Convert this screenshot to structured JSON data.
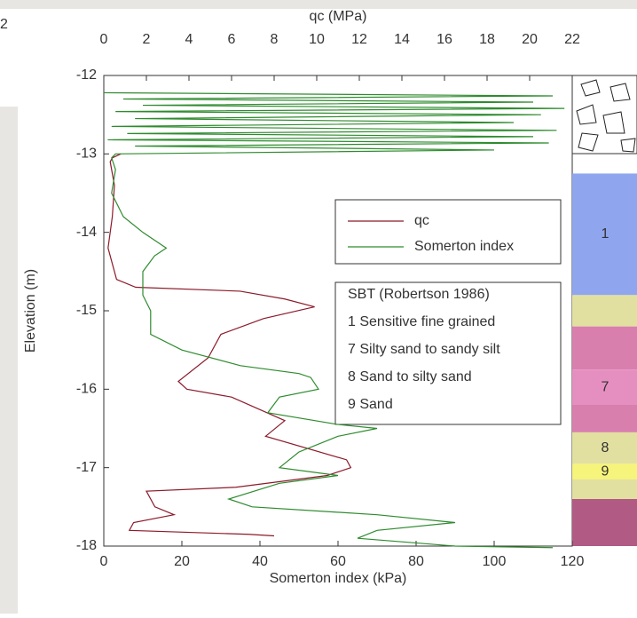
{
  "edge_text": "2",
  "chart_data": {
    "type": "profile",
    "ylabel": "Elevation (m)",
    "ylim": [
      -12,
      -18
    ],
    "yticks": [
      -12,
      -13,
      -14,
      -15,
      -16,
      -17,
      -18
    ],
    "xlabel": "Somerton index (kPa)",
    "xlim": [
      0,
      120
    ],
    "xticks": [
      0,
      20,
      40,
      60,
      80,
      100,
      120
    ],
    "x2label": "qc (MPa)",
    "x2lim": [
      0,
      22
    ],
    "x2ticks": [
      0,
      2,
      4,
      6,
      8,
      10,
      12,
      14,
      16,
      18,
      20,
      22
    ],
    "series": [
      {
        "name": "qc",
        "color": "#8b1a2a",
        "axis": "x2",
        "elevation": [
          -13.0,
          -13.05,
          -13.1,
          -13.4,
          -13.8,
          -14.2,
          -14.6,
          -14.7,
          -14.75,
          -14.85,
          -14.95,
          -15.1,
          -15.3,
          -15.6,
          -15.9,
          -16.0,
          -16.1,
          -16.4,
          -16.6,
          -16.9,
          -17.0,
          -17.1,
          -17.25,
          -17.3,
          -17.5,
          -17.6,
          -17.7,
          -17.8,
          -17.85,
          -17.87
        ],
        "values": [
          0.8,
          0.4,
          0.3,
          0.5,
          0.4,
          0.2,
          0.6,
          1.5,
          6.4,
          8.5,
          9.9,
          7.5,
          5.5,
          4.9,
          3.5,
          3.9,
          6.0,
          8.5,
          7.6,
          11.4,
          11.6,
          10.5,
          6.2,
          2.0,
          2.4,
          3.3,
          1.4,
          1.2,
          6.8,
          8.0
        ]
      },
      {
        "name": "Somerton index",
        "color": "#2e8b2e",
        "axis": "x",
        "elevation": [
          -12.22,
          -12.26,
          -12.3,
          -12.34,
          -12.38,
          -12.42,
          -12.46,
          -12.5,
          -12.55,
          -12.6,
          -12.65,
          -12.7,
          -12.74,
          -12.78,
          -12.82,
          -12.86,
          -12.9,
          -12.95,
          -13.0,
          -13.05,
          -13.2,
          -13.5,
          -13.8,
          -14.0,
          -14.1,
          -14.2,
          -14.3,
          -14.5,
          -14.8,
          -15.0,
          -15.3,
          -15.5,
          -15.7,
          -15.8,
          -15.85,
          -16.0,
          -16.1,
          -16.3,
          -16.45,
          -16.5,
          -16.6,
          -16.8,
          -17.0,
          -17.1,
          -17.2,
          -17.4,
          -17.5,
          -17.6,
          -17.7,
          -17.8,
          -17.9,
          -18.0,
          -18.02
        ],
        "values": [
          0,
          115,
          5,
          110,
          10,
          118,
          3,
          112,
          8,
          105,
          2,
          116,
          6,
          110,
          1,
          114,
          8,
          100,
          3,
          2,
          3,
          2,
          5,
          10,
          13,
          16,
          13,
          10,
          10,
          12,
          12,
          20,
          35,
          50,
          53,
          55,
          45,
          42,
          60,
          70,
          60,
          50,
          45,
          60,
          45,
          32,
          38,
          70,
          90,
          70,
          65,
          90,
          115
        ]
      }
    ],
    "legend": {
      "position": "upper right"
    },
    "sbt_title": "SBT (Robertson 1986)",
    "sbt_entries": [
      "1 Sensitive fine grained",
      "7 Silty sand to sandy silt",
      "8 Sand to silty sand",
      "9 Sand"
    ],
    "layers": [
      {
        "top": -13.25,
        "bottom": -14.8,
        "color": "#8fa6ef",
        "label": "1"
      },
      {
        "top": -14.8,
        "bottom": -15.2,
        "color": "#e2e0a0"
      },
      {
        "top": -15.2,
        "bottom": -15.75,
        "color": "#d97fae"
      },
      {
        "top": -15.75,
        "bottom": -16.2,
        "color": "#e58fc0",
        "label": "7"
      },
      {
        "top": -16.2,
        "bottom": -16.55,
        "color": "#d97fae"
      },
      {
        "top": -16.55,
        "bottom": -16.95,
        "color": "#e2e0a0",
        "label": "8"
      },
      {
        "top": -16.95,
        "bottom": -17.15,
        "color": "#f6f47a",
        "label": "9"
      },
      {
        "top": -17.15,
        "bottom": -17.4,
        "color": "#e2e0a0"
      },
      {
        "top": -17.4,
        "bottom": -18.0,
        "color": "#b05a84"
      }
    ]
  }
}
